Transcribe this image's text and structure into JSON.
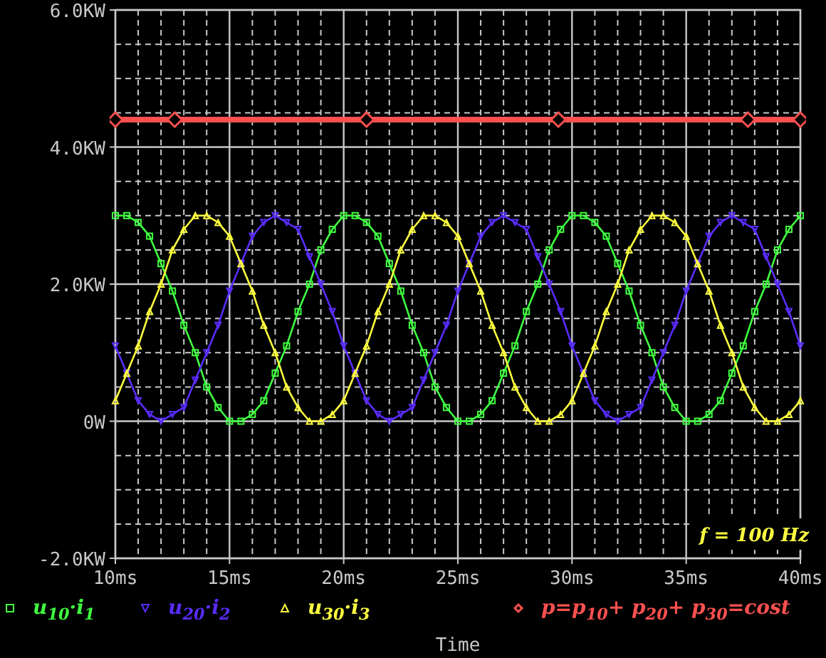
{
  "chart_data": {
    "type": "line",
    "xlabel": "Time",
    "x": [
      10,
      10.5,
      11,
      11.5,
      12,
      12.5,
      13,
      13.5,
      14,
      14.5,
      15,
      15.5,
      16,
      16.5,
      17,
      17.5,
      18,
      18.5,
      19,
      19.5,
      20,
      20.5,
      21,
      21.5,
      22,
      22.5,
      23,
      23.5,
      24,
      24.5,
      25,
      25.5,
      26,
      26.5,
      27,
      27.5,
      28,
      28.5,
      29,
      29.5,
      30,
      30.5,
      31,
      31.5,
      32,
      32.5,
      33,
      33.5,
      34,
      34.5,
      35,
      35.5,
      36,
      36.5,
      37,
      37.5,
      38,
      38.5,
      39,
      39.5,
      40
    ],
    "series": [
      {
        "name": "u$_{10}$·i$_{1}$",
        "color": "#40ff40",
        "marker": "square",
        "values": [
          3.0,
          3.0,
          2.9,
          2.7,
          2.3,
          1.9,
          1.4,
          1.0,
          0.5,
          0.2,
          0.0,
          0.0,
          0.1,
          0.3,
          0.7,
          1.1,
          1.6,
          2.0,
          2.5,
          2.8,
          3.0,
          3.0,
          2.9,
          2.7,
          2.3,
          1.9,
          1.4,
          1.0,
          0.5,
          0.2,
          0.0,
          0.0,
          0.1,
          0.3,
          0.7,
          1.1,
          1.6,
          2.0,
          2.5,
          2.8,
          3.0,
          3.0,
          2.9,
          2.7,
          2.3,
          1.9,
          1.4,
          1.0,
          0.5,
          0.2,
          0.0,
          0.0,
          0.1,
          0.3,
          0.7,
          1.1,
          1.6,
          2.0,
          2.5,
          2.8,
          3.0
        ]
      },
      {
        "name": "u$_{20}$·i$_{2}$",
        "color": "#5a2cff",
        "marker": "triangle-down",
        "values": [
          1.1,
          0.7,
          0.3,
          0.1,
          0.0,
          0.1,
          0.2,
          0.6,
          1.0,
          1.4,
          1.9,
          2.3,
          2.7,
          2.9,
          3.0,
          2.9,
          2.8,
          2.4,
          2.0,
          1.6,
          1.1,
          0.7,
          0.3,
          0.1,
          0.0,
          0.1,
          0.2,
          0.6,
          1.0,
          1.4,
          1.9,
          2.3,
          2.7,
          2.9,
          3.0,
          2.9,
          2.8,
          2.4,
          2.0,
          1.6,
          1.1,
          0.7,
          0.3,
          0.1,
          0.0,
          0.1,
          0.2,
          0.6,
          1.0,
          1.4,
          1.9,
          2.3,
          2.7,
          2.9,
          3.0,
          2.9,
          2.8,
          2.4,
          2.0,
          1.6,
          1.1
        ]
      },
      {
        "name": "u$_{30}$·i$_{3}$",
        "color": "#ffff40",
        "marker": "triangle",
        "values": [
          0.3,
          0.7,
          1.1,
          1.6,
          2.0,
          2.5,
          2.8,
          3.0,
          3.0,
          2.9,
          2.7,
          2.3,
          1.9,
          1.4,
          1.0,
          0.5,
          0.2,
          0.0,
          0.0,
          0.1,
          0.3,
          0.7,
          1.1,
          1.6,
          2.0,
          2.5,
          2.8,
          3.0,
          3.0,
          2.9,
          2.7,
          2.3,
          1.9,
          1.4,
          1.0,
          0.5,
          0.2,
          0.0,
          0.0,
          0.1,
          0.3,
          0.7,
          1.1,
          1.6,
          2.0,
          2.5,
          2.8,
          3.0,
          3.0,
          2.9,
          2.7,
          2.3,
          1.9,
          1.4,
          1.0,
          0.5,
          0.2,
          0.0,
          0.0,
          0.1,
          0.3
        ]
      },
      {
        "name": "p=p$_{10}$+ p$_{20}$+ p$_{30}$=cost",
        "color": "#ff5050",
        "marker": "diamond",
        "x": [
          10,
          12.6,
          21,
          29.4,
          37.7,
          40
        ],
        "values": [
          4.4,
          4.4,
          4.4,
          4.4,
          4.4,
          4.4
        ]
      }
    ],
    "xlim": [
      10,
      40
    ],
    "xticks": [
      {
        "value": 10,
        "label": "10ms"
      },
      {
        "value": 15,
        "label": "15ms"
      },
      {
        "value": 20,
        "label": "20ms"
      },
      {
        "value": 25,
        "label": "25ms"
      },
      {
        "value": 30,
        "label": "30ms"
      },
      {
        "value": 35,
        "label": "35ms"
      },
      {
        "value": 40,
        "label": "40ms"
      }
    ],
    "ylim": [
      -2,
      6
    ],
    "yticks": [
      {
        "value": -2,
        "label": "-2.0KW"
      },
      {
        "value": 0,
        "label": "0W"
      },
      {
        "value": 2,
        "label": "2.0KW"
      },
      {
        "value": 4,
        "label": "4.0KW"
      },
      {
        "value": 6,
        "label": "6.0KW"
      }
    ],
    "grid": true,
    "legend": "bottom",
    "line_style": "solid",
    "annotations": [
      "f = 100 Hz"
    ]
  }
}
